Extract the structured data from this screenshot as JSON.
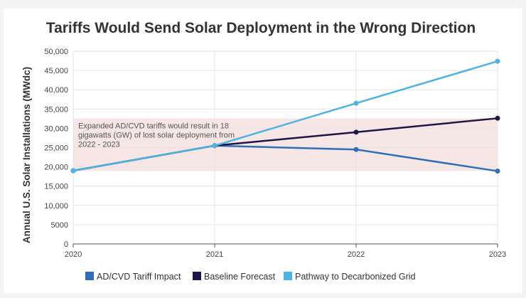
{
  "chart_data": {
    "type": "line",
    "title": "Tariffs Would Send Solar Deployment in the Wrong Direction",
    "ylabel": "Annual U.S. Solar Installations (MWdc)",
    "xlabel": "",
    "x": [
      "2020",
      "2021",
      "2022",
      "2023"
    ],
    "ylim": [
      0,
      50000
    ],
    "yticks": [
      0,
      5000,
      10000,
      15000,
      20000,
      25000,
      30000,
      35000,
      40000,
      45000,
      50000
    ],
    "ytick_labels": [
      "0",
      "5000",
      "10,000",
      "15,000",
      "20,000",
      "25,000",
      "30,000",
      "35,000",
      "40,000",
      "45,000",
      "50,000"
    ],
    "grid": true,
    "legend": "bottom-center",
    "series": [
      {
        "name": "AD/CVD Tariff Impact",
        "color": "#2e6fb7",
        "values": [
          19000,
          25500,
          24500,
          18900
        ]
      },
      {
        "name": "Baseline Forecast",
        "color": "#1f1547",
        "values": [
          19000,
          25500,
          29000,
          32600
        ]
      },
      {
        "name": "Pathway to Decarbonized Grid",
        "color": "#4db3e0",
        "values": [
          19000,
          25500,
          36500,
          47400
        ]
      }
    ],
    "annotation": {
      "lines": [
        "Expanded AD/CVD tariffs would result in 18",
        "gigawatts (GW) of lost solar deployment from",
        "2022 - 2023"
      ],
      "band_from": 18900,
      "band_to": 32600,
      "band_color": "#f7e6e6"
    }
  }
}
